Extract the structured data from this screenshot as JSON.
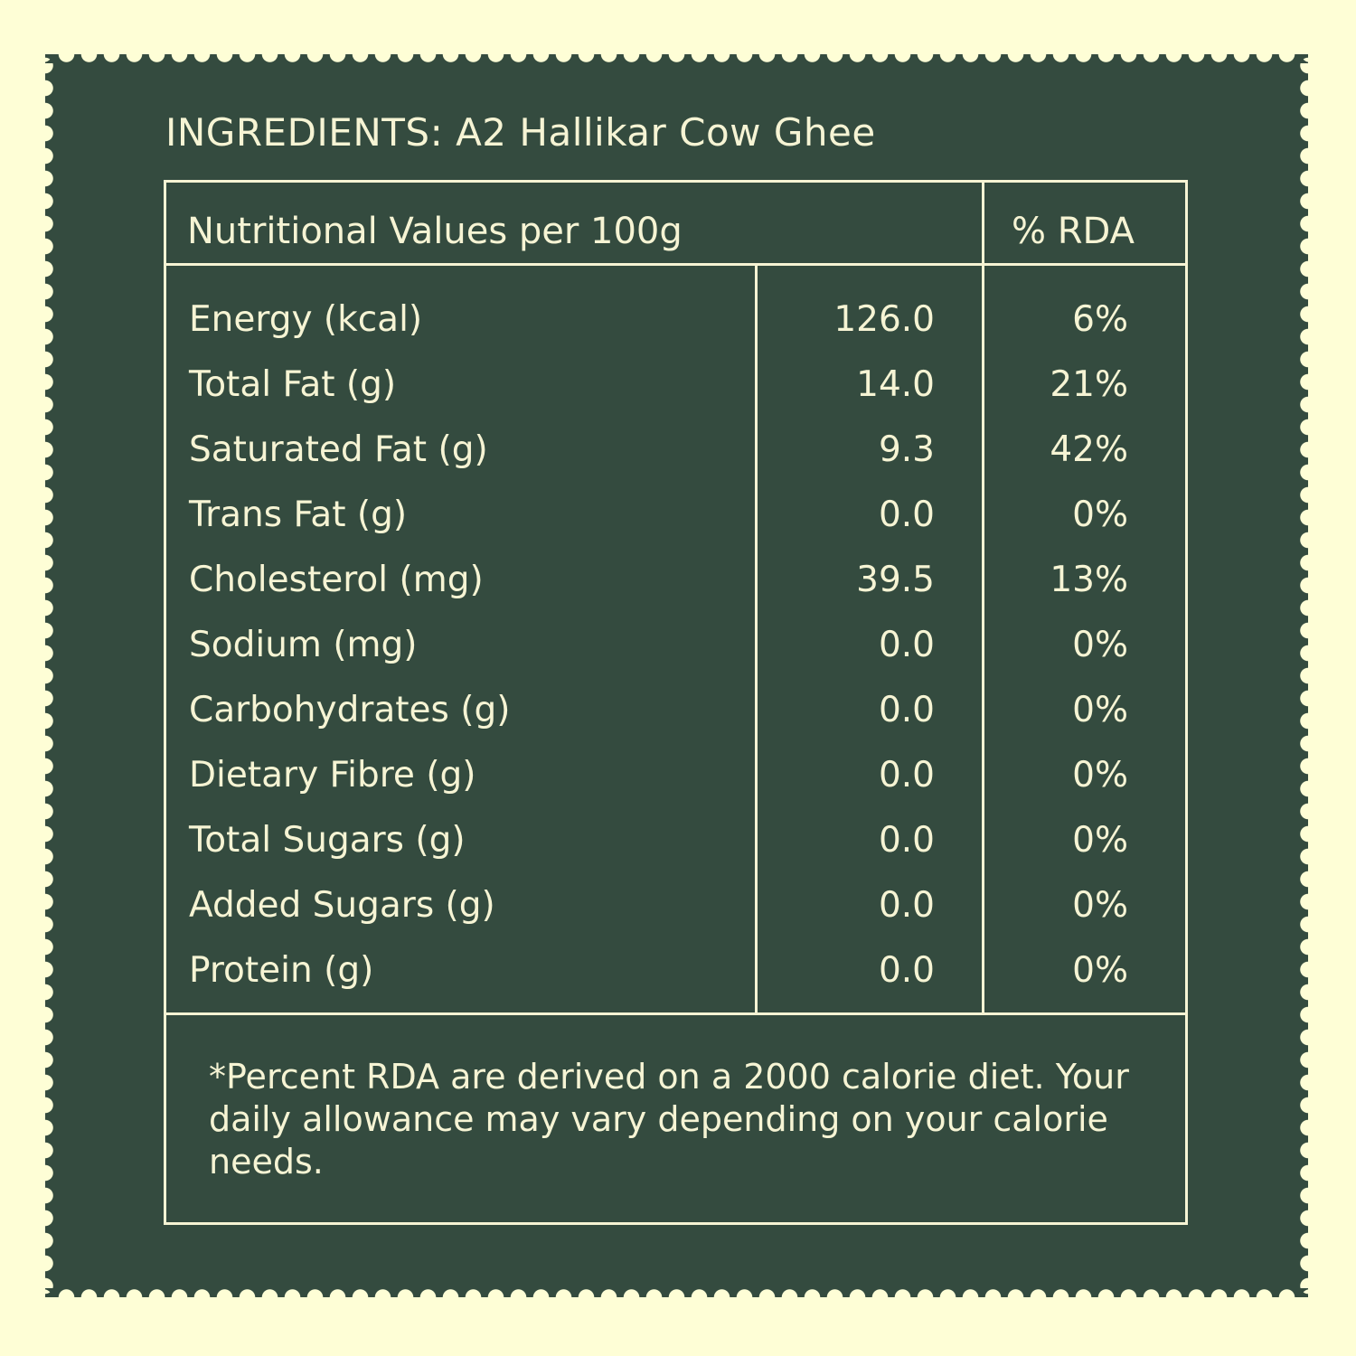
{
  "ingredients": "INGREDIENTS: A2 Hallikar Cow Ghee",
  "table": {
    "header_left": "Nutritional Values per 100g",
    "header_right": "% RDA",
    "rows": [
      {
        "name": "Energy (kcal)",
        "value": "126.0",
        "rda": "6%"
      },
      {
        "name": "Total Fat (g)",
        "value": "14.0",
        "rda": "21%"
      },
      {
        "name": "Saturated Fat (g)",
        "value": "9.3",
        "rda": "42%"
      },
      {
        "name": "Trans Fat (g)",
        "value": "0.0",
        "rda": "0%"
      },
      {
        "name": "Cholesterol (mg)",
        "value": "39.5",
        "rda": "13%"
      },
      {
        "name": "Sodium (mg)",
        "value": "0.0",
        "rda": "0%"
      },
      {
        "name": "Carbohydrates (g)",
        "value": "0.0",
        "rda": "0%"
      },
      {
        "name": "Dietary Fibre (g)",
        "value": "0.0",
        "rda": "0%"
      },
      {
        "name": "Total Sugars (g)",
        "value": "0.0",
        "rda": "0%"
      },
      {
        "name": "Added Sugars (g)",
        "value": "0.0",
        "rda": "0%"
      },
      {
        "name": "Protein (g)",
        "value": "0.0",
        "rda": "0%"
      }
    ],
    "footnote": "*Percent RDA are derived on a 2000 calorie diet. Your daily allowance may vary depending on your calorie needs."
  },
  "colors": {
    "background": "#fefed6",
    "panel": "#344b3f",
    "text": "#f6f4d4"
  }
}
